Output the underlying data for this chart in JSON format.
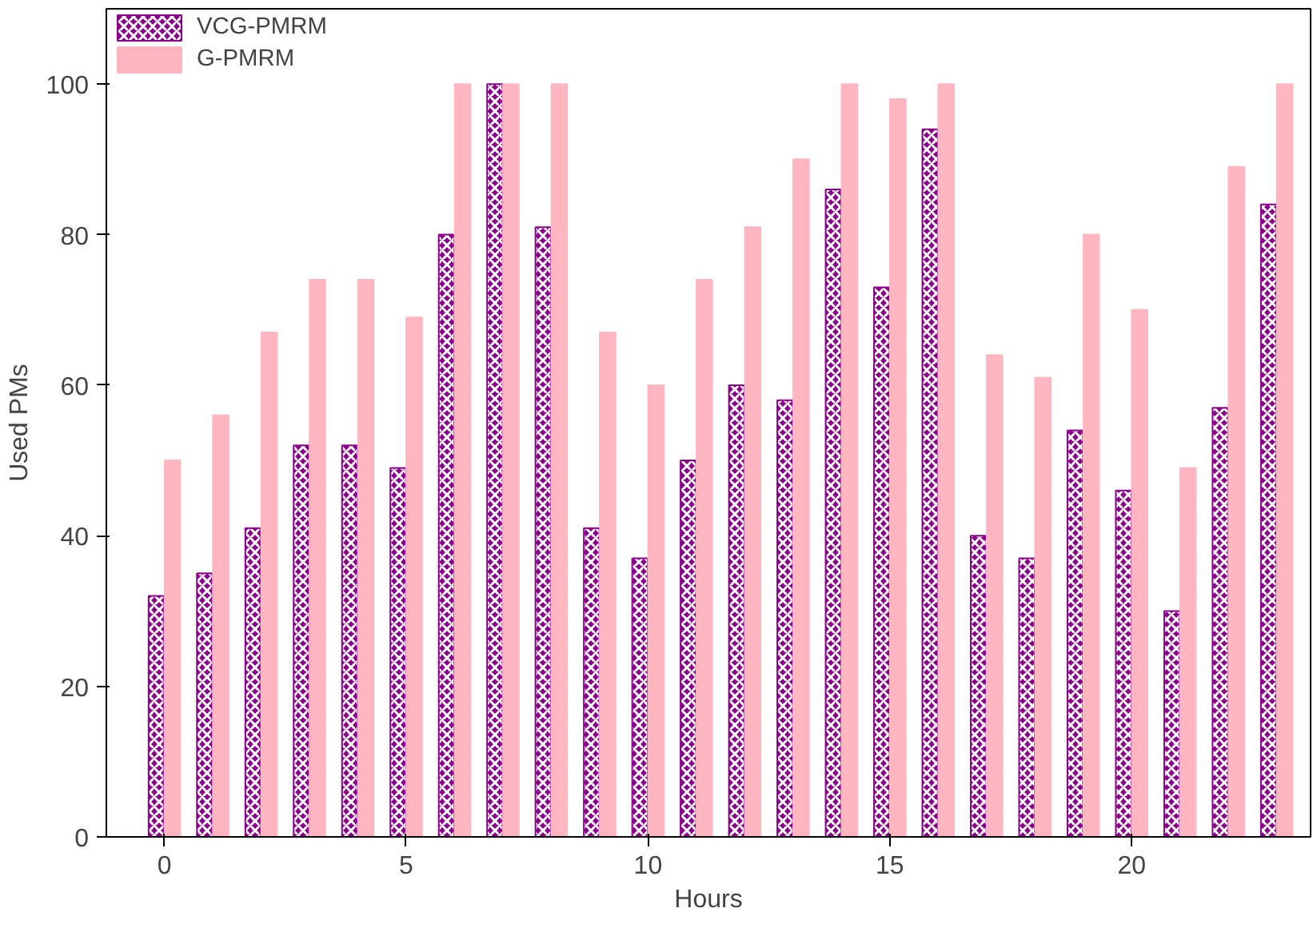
{
  "chart_data": {
    "type": "bar",
    "xlabel": "Hours",
    "ylabel": "Used PMs",
    "x": [
      0,
      1,
      2,
      3,
      4,
      5,
      6,
      7,
      8,
      9,
      10,
      11,
      12,
      13,
      14,
      15,
      16,
      17,
      18,
      19,
      20,
      21,
      22,
      23
    ],
    "series": [
      {
        "name": "VCG-PMRM",
        "color": "#8b008b",
        "values": [
          32,
          35,
          41,
          52,
          52,
          49,
          80,
          100,
          81,
          41,
          37,
          50,
          60,
          58,
          86,
          73,
          94,
          40,
          37,
          54,
          46,
          30,
          57,
          84
        ]
      },
      {
        "name": "G-PMRM",
        "color": "#ffb6c1",
        "values": [
          50,
          56,
          67,
          74,
          74,
          69,
          100,
          100,
          100,
          67,
          60,
          74,
          81,
          90,
          100,
          98,
          100,
          64,
          61,
          80,
          70,
          49,
          89,
          100
        ]
      }
    ],
    "xlim": [
      -1.2,
      23.7
    ],
    "ylim": [
      0,
      110
    ],
    "xticks": [
      0,
      5,
      10,
      15,
      20
    ],
    "yticks": [
      0,
      20,
      40,
      60,
      80,
      100
    ],
    "grid": false,
    "legend": "top left"
  }
}
